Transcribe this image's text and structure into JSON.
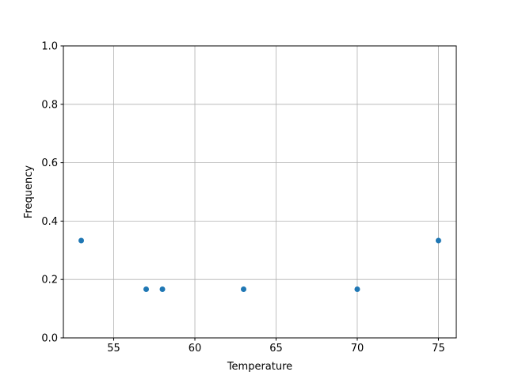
{
  "chart_data": {
    "type": "scatter",
    "title": "",
    "xlabel": "Temperature",
    "ylabel": "Frequency",
    "xlim": [
      51.9,
      76.1
    ],
    "ylim": [
      0.0,
      1.0
    ],
    "xticks": [
      55,
      60,
      65,
      70,
      75
    ],
    "xtick_labels": [
      "55",
      "60",
      "65",
      "70",
      "75"
    ],
    "yticks": [
      0.0,
      0.2,
      0.4,
      0.6,
      0.8,
      1.0
    ],
    "ytick_labels": [
      "0.0",
      "0.2",
      "0.4",
      "0.6",
      "0.8",
      "1.0"
    ],
    "grid": true,
    "color": "#1f77b4",
    "points": [
      {
        "x": 53,
        "y": 0.3333
      },
      {
        "x": 57,
        "y": 0.1667
      },
      {
        "x": 58,
        "y": 0.1667
      },
      {
        "x": 63,
        "y": 0.1667
      },
      {
        "x": 70,
        "y": 0.1667
      },
      {
        "x": 75,
        "y": 0.3333
      }
    ]
  }
}
